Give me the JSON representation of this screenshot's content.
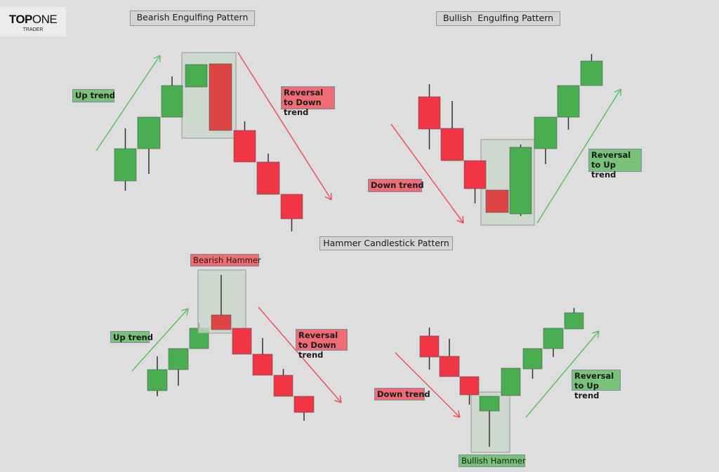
{
  "logo": {
    "bold": "TOP",
    "light": "ONE",
    "sub": "TRADER"
  },
  "colors": {
    "bullish": "#49ae4f",
    "bearish": "#f23545",
    "engulfed_bearish": "#dd4444",
    "highlight_box": "#c9d6c9",
    "up_arrow": "#5cc05c",
    "down_arrow": "#ef4f5c"
  },
  "bearish_engulfing": {
    "title": "Bearish Engulfing Pattern",
    "trend_label": "Up trend",
    "reversal_label": "Reversal to Down trend"
  },
  "bullish_engulfing": {
    "title": "Bullish  Engulfing Pattern",
    "trend_label": "Down trend",
    "reversal_label": "Reversal to Up trend"
  },
  "hammer": {
    "title": "Hammer Candlestick Pattern",
    "bearish": {
      "label": "Bearish Hammer",
      "trend_label": "Up trend",
      "reversal_label": "Reversal to Down trend"
    },
    "bullish": {
      "label": "Bullish Hammer",
      "trend_label": "Down trend",
      "reversal_label": "Reversal to Up trend"
    }
  }
}
